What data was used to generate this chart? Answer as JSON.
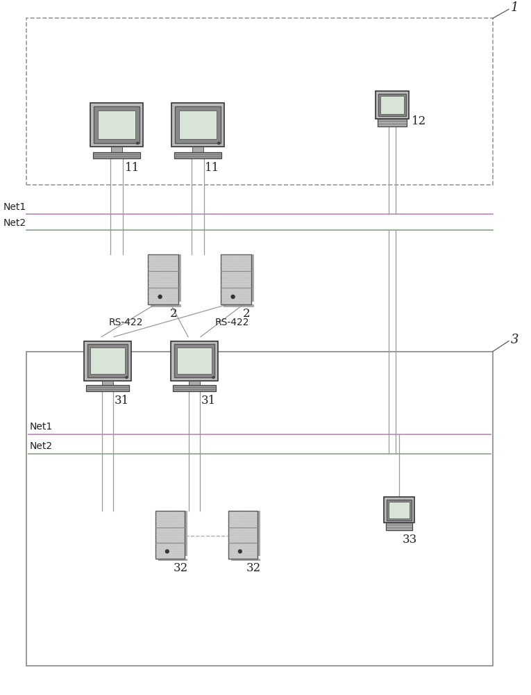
{
  "bg_color": "#ffffff",
  "line_color_net1": "#c090c0",
  "line_color_net2": "#90aa90",
  "line_color_conn": "#999999",
  "dashed_box_color": "#999999",
  "solid_box_color": "#888888",
  "label1": "1",
  "label3": "3",
  "label11": "11",
  "label12": "12",
  "label2": "2",
  "label31": "31",
  "label32": "32",
  "label33": "33",
  "net1_label": "Net1",
  "net2_label": "Net2",
  "rs422_label": "RS-422",
  "text_color": "#222222",
  "monitor_outer": "#555555",
  "monitor_frame": "#888888",
  "monitor_screen_fill": "#d8e8d8",
  "monitor_body": "#cccccc",
  "monitor_stand": "#999999",
  "server_body": "#cccccc",
  "server_edge": "#888888"
}
